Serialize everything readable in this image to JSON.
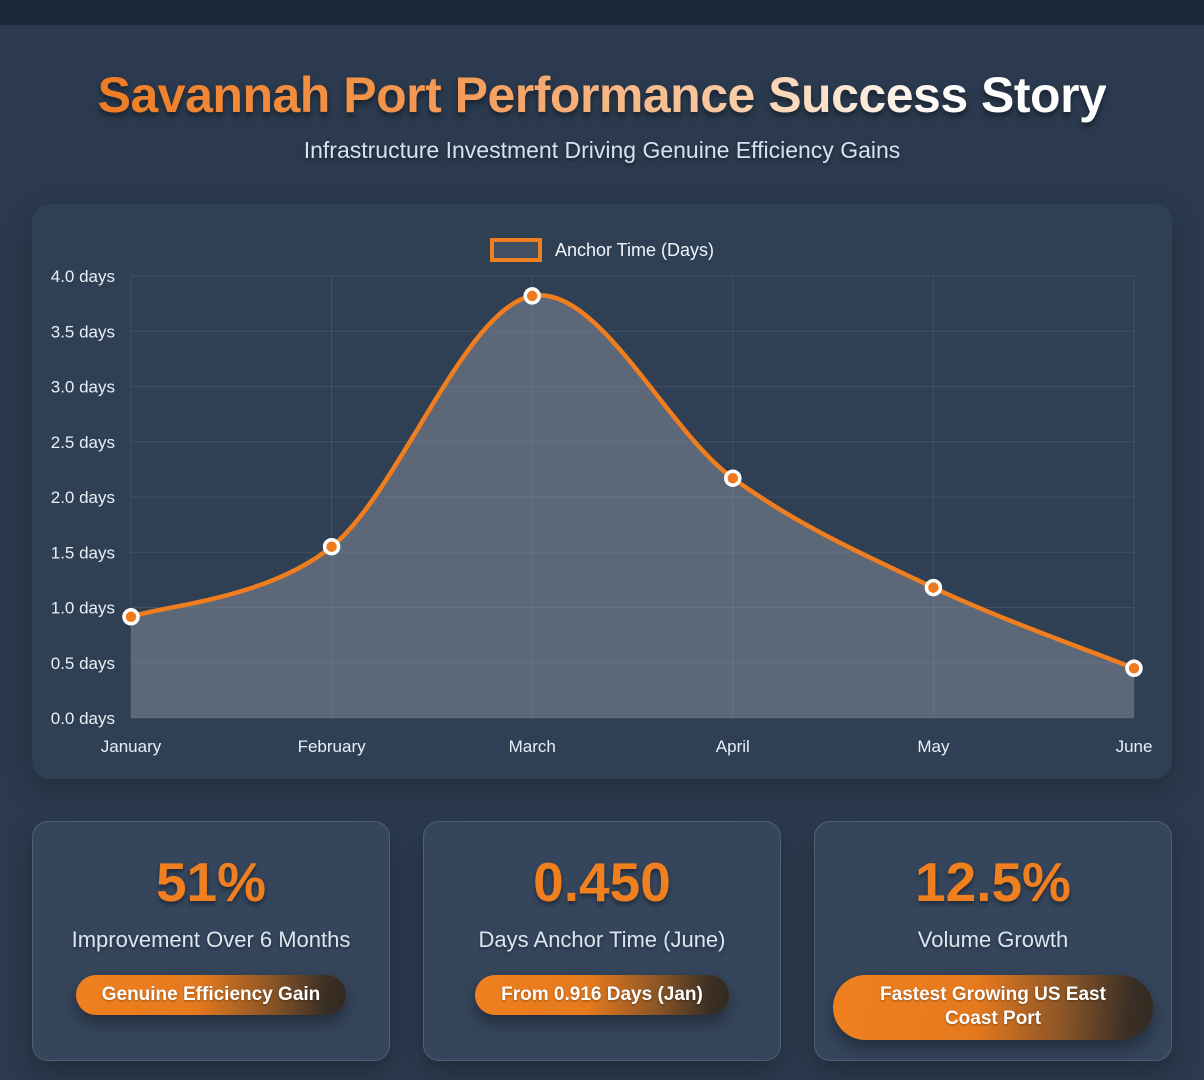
{
  "header": {
    "title": "Savannah Port Performance Success Story",
    "subtitle": "Infrastructure Investment Driving Genuine Efficiency Gains"
  },
  "chart_data": {
    "type": "line",
    "categories": [
      "January",
      "February",
      "March",
      "April",
      "May",
      "June"
    ],
    "series": [
      {
        "name": "Anchor Time (Days)",
        "values": [
          0.916,
          1.55,
          3.82,
          2.17,
          1.18,
          0.45
        ]
      }
    ],
    "title": "",
    "xlabel": "",
    "ylabel": "",
    "ylim": [
      0,
      4
    ],
    "ytick_step": 0.5,
    "ytick_suffix": " days",
    "grid": true,
    "smooth": true,
    "legend_position": "top-center",
    "line_color": "#F07D1E",
    "point_fill": "#F0791D",
    "point_border": "#FFFFFF",
    "area_fill": "rgba(154,159,170,0.42)",
    "grid_color": "rgba(255,255,255,0.09)",
    "tick_color": "#E9EFF6"
  },
  "stats": [
    {
      "value": "51%",
      "label": "Improvement Over 6 Months",
      "badge": "Genuine Efficiency Gain"
    },
    {
      "value": "0.450",
      "label": "Days Anchor Time (June)",
      "badge": "From 0.916 Days (Jan)"
    },
    {
      "value": "12.5%",
      "label": "Volume Growth",
      "badge": "Fastest Growing US East Coast Port"
    }
  ],
  "colors": {
    "accent": "#F0801F",
    "page_bg": "#2B3A4E",
    "topbar_bg": "#1C2938",
    "chart_card_bg": "#2F3F54",
    "stat_card_bg": "#35455B",
    "title_gradient_start": "#EF7C24",
    "title_gradient_end": "#FFFFFF",
    "subtitle_color": "#D8E2EE",
    "stat_label_color": "#DCE6F0",
    "badge_text_color": "#FFFFFF"
  }
}
